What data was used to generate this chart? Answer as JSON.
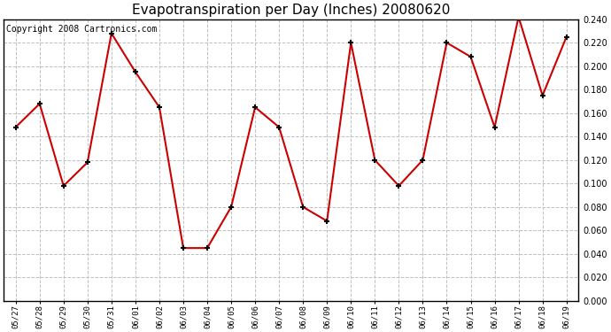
{
  "title": "Evapotranspiration per Day (Inches) 20080620",
  "copyright": "Copyright 2008 Cartronics.com",
  "dates": [
    "05/27",
    "05/28",
    "05/29",
    "05/30",
    "05/31",
    "06/01",
    "06/02",
    "06/03",
    "06/04",
    "06/05",
    "06/06",
    "06/07",
    "06/08",
    "06/09",
    "06/10",
    "06/11",
    "06/12",
    "06/13",
    "06/14",
    "06/15",
    "06/16",
    "06/17",
    "06/18",
    "06/19"
  ],
  "values": [
    0.148,
    0.168,
    0.098,
    0.118,
    0.228,
    0.195,
    0.165,
    0.045,
    0.045,
    0.08,
    0.165,
    0.148,
    0.08,
    0.068,
    0.22,
    0.12,
    0.098,
    0.12,
    0.22,
    0.208,
    0.148,
    0.242,
    0.175,
    0.225
  ],
  "line_color": "#cc0000",
  "marker": "+",
  "marker_size": 5,
  "ylim": [
    0.0,
    0.24
  ],
  "ytick_step": 0.02,
  "background_color": "#ffffff",
  "grid_color": "#c0c0c0",
  "title_fontsize": 11,
  "copyright_fontsize": 7
}
